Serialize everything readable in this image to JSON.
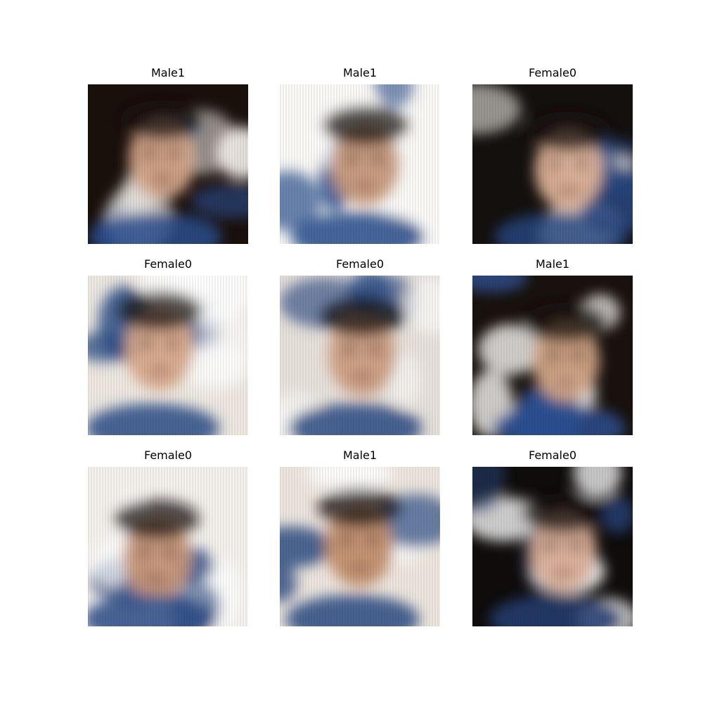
{
  "grid": {
    "rows": 3,
    "cols": 3,
    "cells": [
      {
        "label": "Male1",
        "image": "blurry-generated-face",
        "palette": {
          "bg": "#1a0f0b",
          "skin": "#d6a88a",
          "blue": "#2b4f8f",
          "light": "#f2efe9"
        }
      },
      {
        "label": "Male1",
        "image": "blurry-generated-face",
        "palette": {
          "bg": "#fbfaf7",
          "skin": "#c89a7c",
          "blue": "#254a8a",
          "light": "#ffffff"
        }
      },
      {
        "label": "Female0",
        "image": "blurry-generated-face",
        "palette": {
          "bg": "#14100e",
          "skin": "#e0b49a",
          "blue": "#27467f",
          "light": "#f0ece6"
        }
      },
      {
        "label": "Female0",
        "image": "blurry-generated-face",
        "palette": {
          "bg": "#efe9e2",
          "skin": "#d9aa8c",
          "blue": "#2c4e86",
          "light": "#ffffff"
        }
      },
      {
        "label": "Female0",
        "image": "blurry-generated-face",
        "palette": {
          "bg": "#e8e2dc",
          "skin": "#cf9f83",
          "blue": "#2a4b84",
          "light": "#fbfaf8"
        }
      },
      {
        "label": "Male1",
        "image": "blurry-generated-face",
        "palette": {
          "bg": "#18110d",
          "skin": "#d3a587",
          "blue": "#2d5090",
          "light": "#f3f1ee"
        }
      },
      {
        "label": "Female0",
        "image": "blurry-generated-face",
        "palette": {
          "bg": "#f5f2ee",
          "skin": "#c9977a",
          "blue": "#294a85",
          "light": "#ffffff"
        }
      },
      {
        "label": "Male1",
        "image": "blurry-generated-face",
        "palette": {
          "bg": "#efe7df",
          "skin": "#c4906f",
          "blue": "#2a4a82",
          "light": "#ffffff"
        }
      },
      {
        "label": "Female0",
        "image": "blurry-generated-face",
        "palette": {
          "bg": "#0f0c0b",
          "skin": "#dcb09a",
          "blue": "#253f74",
          "light": "#ffffff"
        }
      }
    ]
  }
}
